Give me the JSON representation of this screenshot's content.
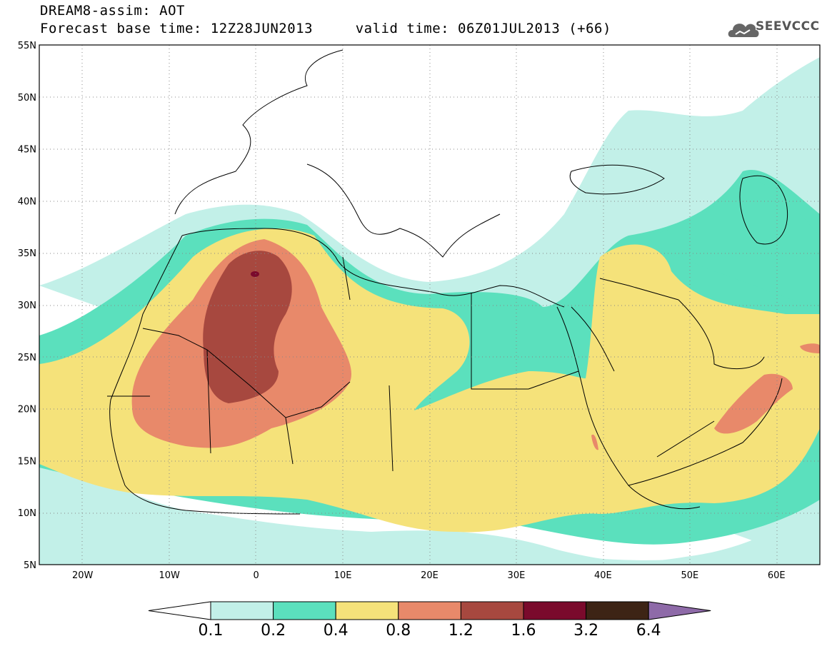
{
  "header": {
    "line1": "DREAM8-assim: AOT",
    "line2": "Forecast base time: 12Z28JUN2013     valid time: 06Z01JUL2013 (+66)"
  },
  "logo": {
    "text": "SEEVCCC",
    "icon": "cloud-icon"
  },
  "map": {
    "lon_range": [
      -25,
      65
    ],
    "lat_range": [
      5,
      55
    ],
    "lat_ticks": [
      "5N",
      "10N",
      "15N",
      "20N",
      "25N",
      "30N",
      "35N",
      "40N",
      "45N",
      "50N",
      "55N"
    ],
    "lon_ticks": [
      "20W",
      "10W",
      "0",
      "10E",
      "20E",
      "30E",
      "40E",
      "50E",
      "60E"
    ]
  },
  "legend": {
    "labels": [
      "0.1",
      "0.2",
      "0.4",
      "0.8",
      "1.2",
      "1.6",
      "3.2",
      "6.4"
    ],
    "colors": [
      "#ffffff",
      "#c2f0e8",
      "#5be0bd",
      "#f5e27a",
      "#e8896a",
      "#a7483f",
      "#7a0a2c",
      "#3d2415",
      "#8e6aa8"
    ]
  }
}
